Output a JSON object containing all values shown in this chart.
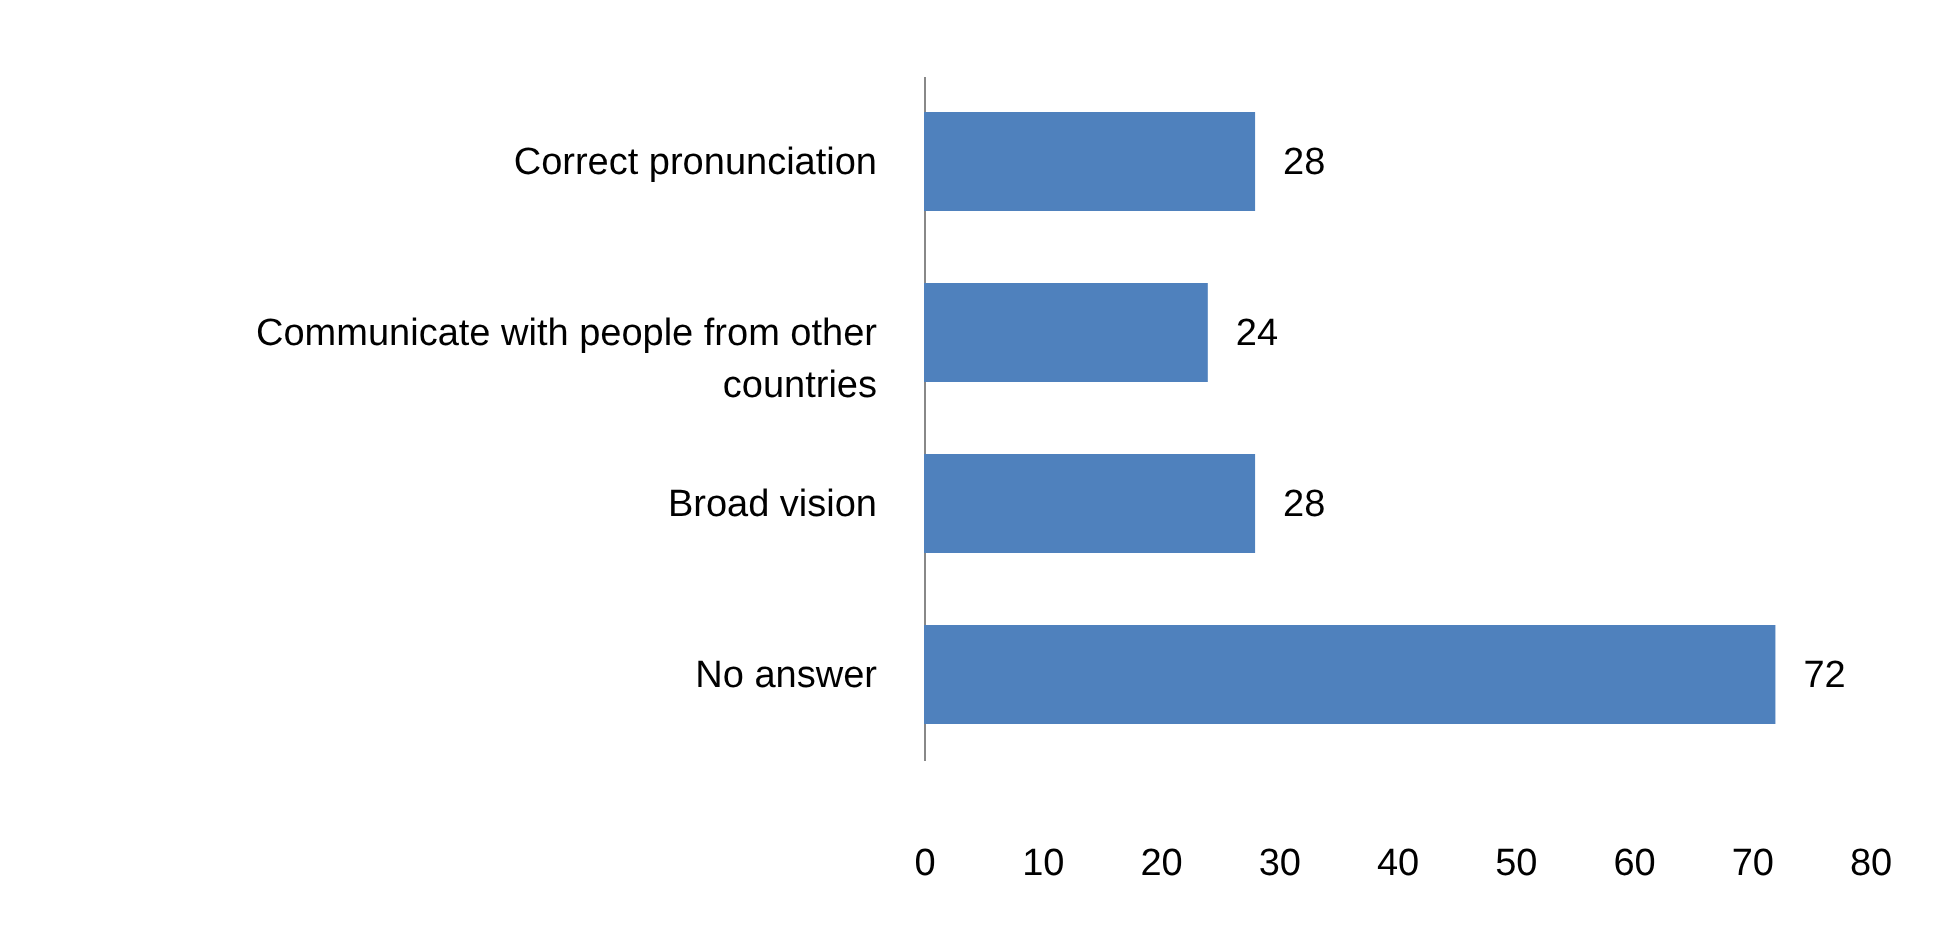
{
  "chart_data": {
    "type": "bar",
    "orientation": "horizontal",
    "categories": [
      "Correct pronunciation",
      "Communicate with people from other countries",
      "Broad vision",
      "No answer"
    ],
    "values": [
      28,
      24,
      28,
      72
    ],
    "color": "#4f81bd",
    "xlim": [
      0,
      80
    ],
    "xticks": [
      0,
      10,
      20,
      30,
      40,
      50,
      60,
      70,
      80
    ],
    "grid": false,
    "data_labels": true
  }
}
